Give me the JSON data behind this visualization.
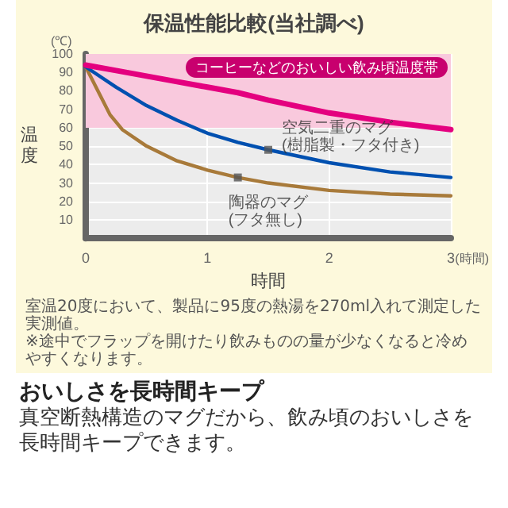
{
  "chart_data": {
    "type": "line",
    "title": "保温性能比較(当社調べ)",
    "xlabel": "時間",
    "ylabel": "温度",
    "x": [
      0,
      0.25,
      0.5,
      0.75,
      1,
      1.25,
      1.5,
      2,
      2.5,
      3
    ],
    "series": [
      {
        "color": "#e4007f",
        "values": [
          94,
          91,
          88,
          85,
          82,
          79,
          75,
          68,
          63,
          59
        ]
      },
      {
        "color": "#0050b0",
        "values": [
          93,
          82,
          72,
          64,
          57,
          52,
          48,
          41,
          36,
          33
        ]
      },
      {
        "color": "#a87a3a",
        "x": [
          0,
          0.1,
          0.2,
          0.3,
          0.5,
          0.75,
          1,
          1.25,
          1.5,
          2,
          2.5,
          3
        ],
        "values": [
          93,
          80,
          67,
          59,
          50,
          42,
          37,
          33,
          30,
          26,
          24,
          23
        ]
      }
    ],
    "xlim": [
      0,
      3
    ],
    "xticks": [
      0,
      1,
      2,
      3
    ],
    "ylim": [
      0,
      100
    ],
    "yticks": [
      {
        "value": 0,
        "label": null
      },
      10,
      20,
      30,
      40,
      50,
      60,
      70,
      80,
      90,
      100
    ],
    "grid": true,
    "marker": "none",
    "bands": [
      {
        "axis": "y",
        "from": 60,
        "to": 100,
        "label": "コーヒーなどのおいしい飲み頃温度帯",
        "color": "#f9c9dd"
      }
    ],
    "annotations": [
      "(℃)",
      "(時間)",
      {
        "text": "空気二重のマグ\n(樹脂製・フタ付き)",
        "x": 1.5,
        "y": 48
      },
      {
        "text": "陶器のマグ\n(フタ無し)",
        "x": 1.25,
        "y": 33
      },
      "室温20度において、製品に95度の熱湯を270ml入れて測定した実測値。",
      "※途中でフラップを開けたり飲みものの量が少なくなると冷めやすくなります。",
      "おいしさを長時間キープ",
      "真空断熱構造のマグだから、飲み頃のおいしさを長時間キープできます。"
    ]
  }
}
